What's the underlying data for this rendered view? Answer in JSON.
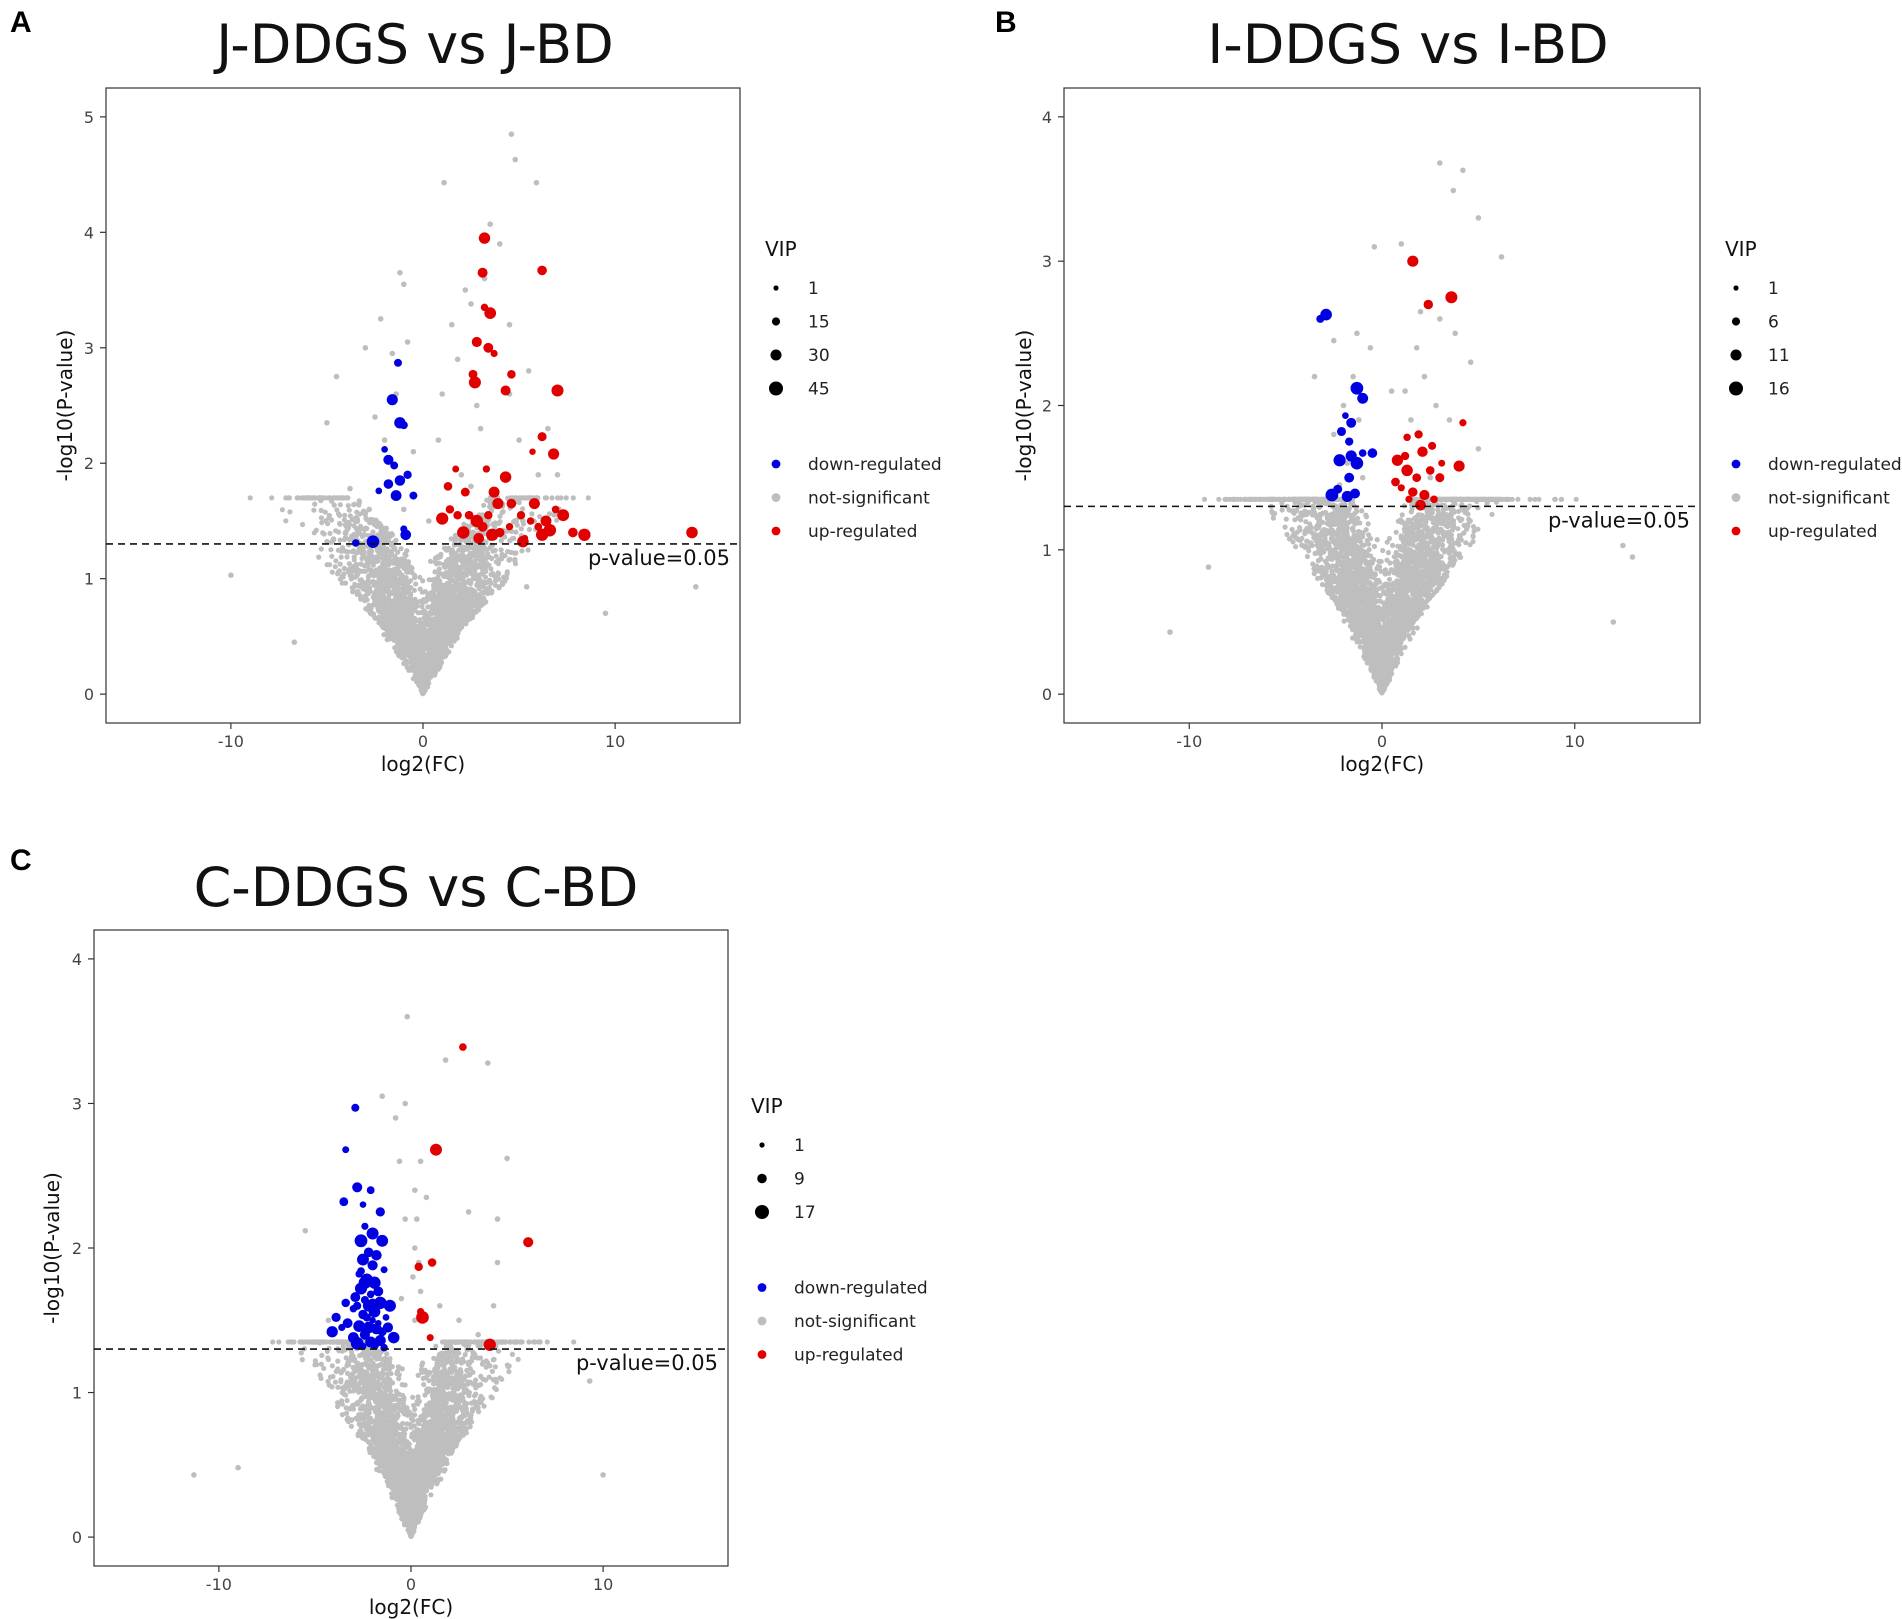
{
  "figure": {
    "panel_letters": [
      "A",
      "B",
      "C"
    ]
  },
  "chart_data": [
    {
      "panel": "A",
      "type": "scatter",
      "title": "J-DDGS vs J-BD",
      "xlabel": "log2(FC)",
      "ylabel": "-log10(P-value)",
      "xlim": [
        -16.5,
        16.5
      ],
      "ylim": [
        -0.25,
        5.25
      ],
      "xticks": [
        -10,
        0,
        10
      ],
      "yticks": [
        0,
        1,
        2,
        3,
        4,
        5
      ],
      "threshold": {
        "value": 1.30103,
        "label": "p-value=0.05"
      },
      "legend": {
        "size_title": "VIP",
        "size_values": [
          "1",
          "15",
          "30",
          "45"
        ],
        "color_entries": [
          {
            "label": "down-regulated",
            "color": "#0000e0"
          },
          {
            "label": "not-significant",
            "color": "#bebebe"
          },
          {
            "label": "up-regulated",
            "color": "#e00000"
          }
        ]
      },
      "background": {
        "count": 3000,
        "xspread": 3.0,
        "xmax": 10,
        "ymax": 1.7,
        "seed": 11,
        "outliers": [
          [
            -10,
            1.03
          ],
          [
            -6.7,
            0.45
          ],
          [
            -4.5,
            2.75
          ],
          [
            -3.8,
            1.78
          ],
          [
            9.5,
            0.7
          ],
          [
            14.2,
            0.93
          ],
          [
            -5.0,
            2.35
          ],
          [
            3.5,
            4.07
          ],
          [
            4.8,
            4.63
          ],
          [
            4.6,
            4.85
          ],
          [
            5.9,
            4.43
          ],
          [
            1.1,
            4.43
          ],
          [
            2.5,
            3.38
          ],
          [
            5.4,
            0.93
          ]
        ]
      },
      "grey_significant": [
        [
          -1.2,
          3.65
        ],
        [
          -1.0,
          3.55
        ],
        [
          -2.2,
          3.25
        ],
        [
          -3.0,
          3.0
        ],
        [
          -1.6,
          2.95
        ],
        [
          -0.8,
          3.05
        ],
        [
          -1.4,
          2.6
        ],
        [
          -2.5,
          2.4
        ],
        [
          0.8,
          2.2
        ],
        [
          1.0,
          2.6
        ],
        [
          -2.0,
          2.2
        ],
        [
          -0.5,
          2.1
        ],
        [
          -1.8,
          1.8
        ],
        [
          2.2,
          3.5
        ],
        [
          1.5,
          3.2
        ],
        [
          4.5,
          3.2
        ],
        [
          5.5,
          2.8
        ],
        [
          6.0,
          1.9
        ],
        [
          7.0,
          1.9
        ],
        [
          0.3,
          1.5
        ],
        [
          3.8,
          1.7
        ],
        [
          5.2,
          1.5
        ],
        [
          -2.8,
          1.6
        ],
        [
          -3.5,
          1.5
        ],
        [
          1.8,
          2.9
        ],
        [
          2.8,
          2.5
        ],
        [
          4.0,
          3.9
        ],
        [
          3.2,
          3.6
        ],
        [
          2.0,
          1.9
        ],
        [
          6.5,
          2.3
        ],
        [
          5.0,
          2.2
        ],
        [
          -2.0,
          1.4
        ],
        [
          -1.0,
          1.6
        ],
        [
          3.0,
          2.3
        ],
        [
          4.5,
          2.6
        ],
        [
          2.5,
          1.8
        ]
      ],
      "down": [
        [
          -1.3,
          2.87
        ],
        [
          -1.6,
          2.55
        ],
        [
          -1.2,
          2.35
        ],
        [
          -1.0,
          2.33
        ],
        [
          -2.0,
          2.12
        ],
        [
          -1.8,
          2.03
        ],
        [
          -1.5,
          1.98
        ],
        [
          -0.8,
          1.9
        ],
        [
          -1.2,
          1.85
        ],
        [
          -1.8,
          1.82
        ],
        [
          -2.3,
          1.76
        ],
        [
          -1.4,
          1.72
        ],
        [
          -0.5,
          1.72
        ],
        [
          -1.0,
          1.43
        ],
        [
          -0.9,
          1.38
        ],
        [
          -2.6,
          1.32
        ],
        [
          -3.5,
          1.31
        ]
      ],
      "up": [
        [
          3.1,
          3.65
        ],
        [
          3.2,
          3.35
        ],
        [
          3.5,
          3.3
        ],
        [
          2.8,
          3.05
        ],
        [
          3.4,
          3.0
        ],
        [
          3.7,
          2.95
        ],
        [
          2.6,
          2.77
        ],
        [
          2.7,
          2.7
        ],
        [
          4.6,
          2.77
        ],
        [
          4.3,
          2.63
        ],
        [
          7.0,
          2.63
        ],
        [
          6.2,
          2.23
        ],
        [
          5.7,
          2.1
        ],
        [
          6.8,
          2.08
        ],
        [
          6.2,
          3.67
        ],
        [
          3.2,
          3.95
        ],
        [
          1.7,
          1.95
        ],
        [
          1.3,
          1.8
        ],
        [
          2.2,
          1.75
        ],
        [
          1.4,
          1.6
        ],
        [
          1.8,
          1.55
        ],
        [
          2.4,
          1.55
        ],
        [
          1.0,
          1.52
        ],
        [
          2.8,
          1.5
        ],
        [
          3.4,
          1.55
        ],
        [
          3.1,
          1.45
        ],
        [
          3.7,
          1.75
        ],
        [
          3.9,
          1.65
        ],
        [
          4.5,
          1.45
        ],
        [
          4.0,
          1.4
        ],
        [
          5.1,
          1.55
        ],
        [
          5.3,
          1.35
        ],
        [
          5.6,
          1.5
        ],
        [
          6.0,
          1.45
        ],
        [
          6.2,
          1.38
        ],
        [
          6.4,
          1.5
        ],
        [
          6.6,
          1.42
        ],
        [
          5.8,
          1.65
        ],
        [
          6.9,
          1.6
        ],
        [
          7.3,
          1.55
        ],
        [
          7.8,
          1.4
        ],
        [
          8.4,
          1.38
        ],
        [
          14.0,
          1.4
        ],
        [
          4.6,
          1.65
        ],
        [
          4.3,
          1.88
        ],
        [
          3.3,
          1.95
        ],
        [
          2.1,
          1.4
        ],
        [
          2.9,
          1.35
        ],
        [
          5.2,
          1.32
        ],
        [
          3.6,
          1.38
        ]
      ]
    },
    {
      "panel": "B",
      "type": "scatter",
      "title": "I-DDGS vs I-BD",
      "xlabel": "log2(FC)",
      "ylabel": "-log10(P-value)",
      "xlim": [
        -16.5,
        16.5
      ],
      "ylim": [
        -0.2,
        4.2
      ],
      "xticks": [
        -10,
        0,
        10
      ],
      "yticks": [
        0,
        1,
        2,
        3,
        4
      ],
      "threshold": {
        "value": 1.30103,
        "label": "p-value=0.05"
      },
      "legend": {
        "size_title": "VIP",
        "size_values": [
          "1",
          "6",
          "11",
          "16"
        ],
        "color_entries": [
          {
            "label": "down-regulated",
            "color": "#0000e0"
          },
          {
            "label": "not-significant",
            "color": "#bebebe"
          },
          {
            "label": "up-regulated",
            "color": "#e00000"
          }
        ]
      },
      "background": {
        "count": 3400,
        "xspread": 3.2,
        "xmax": 12,
        "ymax": 1.35,
        "seed": 23,
        "outliers": [
          [
            -11,
            0.43
          ],
          [
            -9.0,
            0.88
          ],
          [
            12.0,
            0.5
          ],
          [
            13.0,
            0.95
          ],
          [
            12.5,
            1.03
          ],
          [
            6.2,
            3.03
          ],
          [
            4.2,
            3.63
          ],
          [
            3.0,
            3.68
          ],
          [
            3.7,
            3.49
          ],
          [
            -0.4,
            3.1
          ],
          [
            1.0,
            3.12
          ],
          [
            5.0,
            3.3
          ],
          [
            -2.5,
            2.45
          ],
          [
            -3.5,
            2.2
          ]
        ]
      },
      "grey_significant": [
        [
          -1.5,
          2.2
        ],
        [
          -2.0,
          2.0
        ],
        [
          -1.2,
          1.9
        ],
        [
          -2.5,
          1.8
        ],
        [
          -1.8,
          1.6
        ],
        [
          -1.0,
          1.5
        ],
        [
          -2.2,
          1.45
        ],
        [
          1.8,
          2.4
        ],
        [
          2.2,
          2.2
        ],
        [
          2.8,
          2.0
        ],
        [
          3.5,
          1.9
        ],
        [
          1.5,
          1.9
        ],
        [
          0.8,
          1.6
        ],
        [
          2.5,
          1.5
        ],
        [
          3.0,
          2.6
        ],
        [
          3.8,
          2.5
        ],
        [
          4.6,
          2.3
        ],
        [
          1.2,
          2.1
        ],
        [
          2.0,
          2.65
        ],
        [
          -1.3,
          2.5
        ],
        [
          4.0,
          1.6
        ],
        [
          5.0,
          1.7
        ],
        [
          -0.6,
          2.4
        ],
        [
          0.5,
          2.1
        ]
      ],
      "down": [
        [
          -3.2,
          2.6
        ],
        [
          -2.9,
          2.63
        ],
        [
          -1.3,
          2.12
        ],
        [
          -1.0,
          2.05
        ],
        [
          -1.9,
          1.93
        ],
        [
          -1.6,
          1.88
        ],
        [
          -2.1,
          1.82
        ],
        [
          -1.7,
          1.75
        ],
        [
          -1.6,
          1.65
        ],
        [
          -1.0,
          1.67
        ],
        [
          -0.5,
          1.67
        ],
        [
          -2.2,
          1.62
        ],
        [
          -1.3,
          1.6
        ],
        [
          -1.7,
          1.5
        ],
        [
          -2.3,
          1.42
        ],
        [
          -1.4,
          1.39
        ],
        [
          -2.6,
          1.38
        ],
        [
          -1.8,
          1.37
        ]
      ],
      "up": [
        [
          1.6,
          3.0
        ],
        [
          2.4,
          2.7
        ],
        [
          3.6,
          2.75
        ],
        [
          1.9,
          1.8
        ],
        [
          1.3,
          1.78
        ],
        [
          2.6,
          1.72
        ],
        [
          1.2,
          1.65
        ],
        [
          2.1,
          1.68
        ],
        [
          0.8,
          1.62
        ],
        [
          3.1,
          1.6
        ],
        [
          4.2,
          1.88
        ],
        [
          3.0,
          1.5
        ],
        [
          1.3,
          1.55
        ],
        [
          1.8,
          1.5
        ],
        [
          2.5,
          1.55
        ],
        [
          0.7,
          1.47
        ],
        [
          1.0,
          1.43
        ],
        [
          1.6,
          1.4
        ],
        [
          2.2,
          1.38
        ],
        [
          2.7,
          1.35
        ],
        [
          1.4,
          1.35
        ],
        [
          2.0,
          1.31
        ],
        [
          4.0,
          1.58
        ]
      ]
    },
    {
      "panel": "C",
      "type": "scatter",
      "title": "C-DDGS vs C-BD",
      "xlabel": "log2(FC)",
      "ylabel": "-log10(P-value)",
      "xlim": [
        -16.5,
        16.5
      ],
      "ylim": [
        -0.2,
        4.2
      ],
      "xticks": [
        -10,
        0,
        10
      ],
      "yticks": [
        0,
        1,
        2,
        3,
        4
      ],
      "threshold": {
        "value": 1.30103,
        "label": "p-value=0.05"
      },
      "legend": {
        "size_title": "VIP",
        "size_values": [
          "1",
          "9",
          "17"
        ],
        "color_entries": [
          {
            "label": "down-regulated",
            "color": "#0000e0"
          },
          {
            "label": "not-significant",
            "color": "#bebebe"
          },
          {
            "label": "up-regulated",
            "color": "#e00000"
          }
        ]
      },
      "background": {
        "count": 3200,
        "xspread": 2.6,
        "xmax": 10,
        "ymax": 1.35,
        "seed": 37,
        "outliers": [
          [
            -11.3,
            0.43
          ],
          [
            -9.0,
            0.48
          ],
          [
            -5.5,
            2.12
          ],
          [
            9.3,
            1.08
          ],
          [
            10.0,
            0.43
          ],
          [
            -0.2,
            3.6
          ],
          [
            1.8,
            3.3
          ],
          [
            4.0,
            3.28
          ],
          [
            5.0,
            2.62
          ],
          [
            3.0,
            2.25
          ],
          [
            4.5,
            2.2
          ],
          [
            -1.5,
            3.05
          ],
          [
            -0.3,
            3.0
          ],
          [
            0.5,
            2.6
          ]
        ]
      },
      "grey_significant": [
        [
          -0.8,
          2.9
        ],
        [
          -0.6,
          2.6
        ],
        [
          0.2,
          2.4
        ],
        [
          0.3,
          2.2
        ],
        [
          -0.3,
          2.2
        ],
        [
          0.2,
          2.0
        ],
        [
          0.4,
          1.9
        ],
        [
          0.1,
          1.8
        ],
        [
          0.5,
          1.7
        ],
        [
          -0.5,
          1.65
        ],
        [
          0.6,
          1.55
        ],
        [
          0.2,
          1.5
        ],
        [
          2.5,
          1.5
        ],
        [
          3.5,
          1.4
        ],
        [
          4.3,
          1.6
        ],
        [
          4.5,
          1.9
        ],
        [
          5.5,
          1.35
        ],
        [
          1.5,
          1.6
        ],
        [
          -4.3,
          1.5
        ],
        [
          -5.0,
          1.35
        ],
        [
          0.8,
          2.35
        ]
      ],
      "down": [
        [
          -2.9,
          2.97
        ],
        [
          -3.4,
          2.68
        ],
        [
          -2.8,
          2.42
        ],
        [
          -2.1,
          2.4
        ],
        [
          -3.5,
          2.32
        ],
        [
          -2.5,
          2.3
        ],
        [
          -1.6,
          2.25
        ],
        [
          -2.4,
          2.15
        ],
        [
          -2.0,
          2.1
        ],
        [
          -2.6,
          2.05
        ],
        [
          -1.5,
          2.05
        ],
        [
          -2.2,
          1.97
        ],
        [
          -1.8,
          1.95
        ],
        [
          -2.5,
          1.92
        ],
        [
          -2.0,
          1.88
        ],
        [
          -1.4,
          1.85
        ],
        [
          -2.7,
          1.82
        ],
        [
          -2.3,
          1.78
        ],
        [
          -1.9,
          1.76
        ],
        [
          -2.6,
          1.72
        ],
        [
          -1.7,
          1.7
        ],
        [
          -2.1,
          1.68
        ],
        [
          -2.9,
          1.66
        ],
        [
          -2.4,
          1.64
        ],
        [
          -1.6,
          1.62
        ],
        [
          -2.2,
          1.6
        ],
        [
          -3.0,
          1.58
        ],
        [
          -1.9,
          1.56
        ],
        [
          -2.5,
          1.54
        ],
        [
          -1.3,
          1.52
        ],
        [
          -2.0,
          1.5
        ],
        [
          -3.3,
          1.48
        ],
        [
          -2.7,
          1.46
        ],
        [
          -2.2,
          1.45
        ],
        [
          -1.8,
          1.44
        ],
        [
          -1.5,
          1.42
        ],
        [
          -2.4,
          1.4
        ],
        [
          -3.0,
          1.38
        ],
        [
          -1.6,
          1.36
        ],
        [
          -2.1,
          1.35
        ],
        [
          -2.8,
          1.34
        ],
        [
          -1.9,
          1.33
        ],
        [
          -2.5,
          1.32
        ],
        [
          -1.4,
          1.31
        ],
        [
          -3.9,
          1.52
        ],
        [
          -3.6,
          1.45
        ],
        [
          -4.1,
          1.42
        ],
        [
          -1.2,
          1.45
        ],
        [
          -0.9,
          1.38
        ],
        [
          -2.0,
          1.62
        ],
        [
          -2.6,
          1.84
        ],
        [
          -2.3,
          1.52
        ],
        [
          -1.7,
          1.48
        ],
        [
          -2.8,
          1.6
        ],
        [
          -3.4,
          1.62
        ],
        [
          -1.1,
          1.6
        ],
        [
          -2.4,
          1.76
        ]
      ],
      "up": [
        [
          2.7,
          3.39
        ],
        [
          1.3,
          2.68
        ],
        [
          6.1,
          2.04
        ],
        [
          1.1,
          1.9
        ],
        [
          0.4,
          1.87
        ],
        [
          0.5,
          1.56
        ],
        [
          0.6,
          1.52
        ],
        [
          1.0,
          1.38
        ],
        [
          4.1,
          1.33
        ]
      ]
    }
  ]
}
